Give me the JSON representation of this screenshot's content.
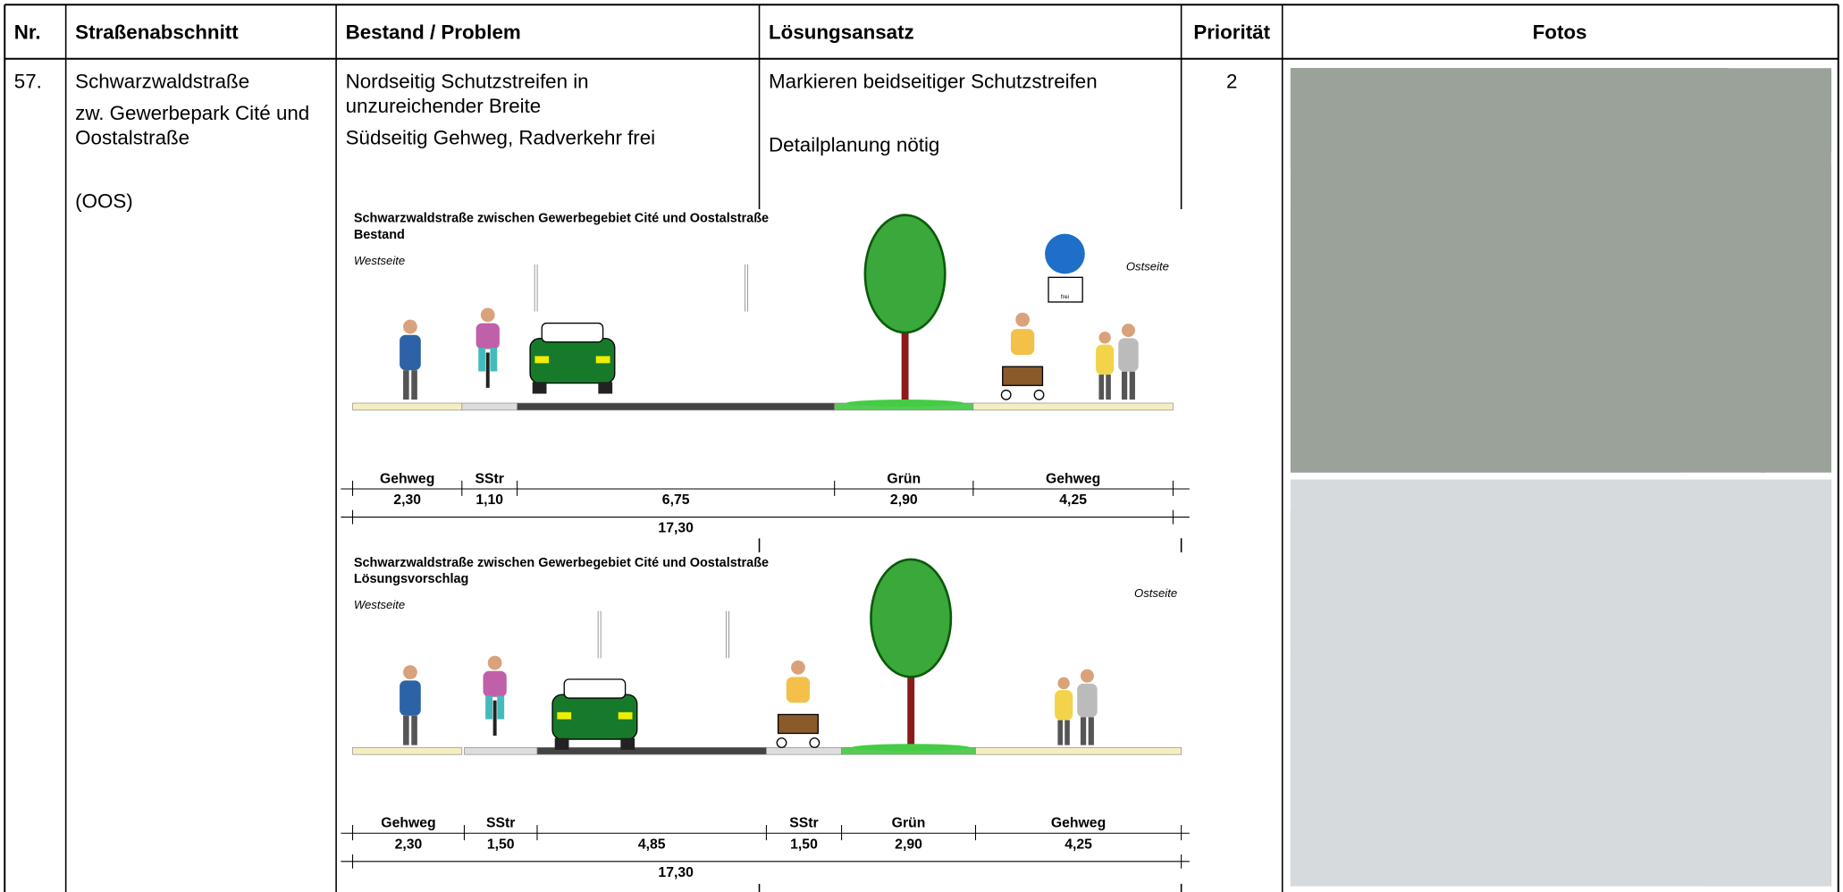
{
  "table": {
    "header": [
      "Nr.",
      "Straßenabschnitt",
      "Bestand / Problem",
      "Lösungsansatz",
      "Priorität",
      "Fotos"
    ],
    "rows": [
      {
        "nr": "57.",
        "section": [
          "Schwarzwaldstraße",
          "zw. Gewerbepark Cité und",
          "Oostalstraße",
          "(OOS)"
        ],
        "problem": [
          "Nordseitig Schutzstreifen in",
          "unzureichender Breite",
          "Südseitig Gehweg, Radverkehr frei"
        ],
        "solution": [
          "Markieren beidseitiger Schutzstreifen",
          "Detailplanung nötig"
        ],
        "priority": "2"
      }
    ]
  },
  "diagrams": [
    {
      "title": "Schwarzwaldstraße zwischen Gewerbegebiet Cité und Oostalstraße",
      "subtitle": "Bestand",
      "west": "Westseite",
      "east": "Ostseite",
      "sign_label": "frei",
      "segments": [
        {
          "name": "Gehweg",
          "width": "2,30"
        },
        {
          "name": "SStr",
          "width": "1,10"
        },
        {
          "width": "6,75"
        },
        {
          "name": "Grün",
          "width": "2,90"
        },
        {
          "name": "Gehweg",
          "width": "4,25"
        }
      ],
      "total": "17,30"
    },
    {
      "title": "Schwarzwaldstraße zwischen Gewerbegebiet Cité und Oostalstraße",
      "subtitle": "Lösungsvorschlag",
      "west": "Westseite",
      "east": "Ostseite",
      "segments": [
        {
          "name": "Gehweg",
          "width": "2,30"
        },
        {
          "name": "SStr",
          "width": "1,50"
        },
        {
          "width": "4,85"
        },
        {
          "name": "SStr",
          "width": "1,50"
        },
        {
          "name": "Grün",
          "width": "2,90"
        },
        {
          "name": "Gehweg",
          "width": "4,25"
        }
      ],
      "total": "17,30"
    }
  ]
}
